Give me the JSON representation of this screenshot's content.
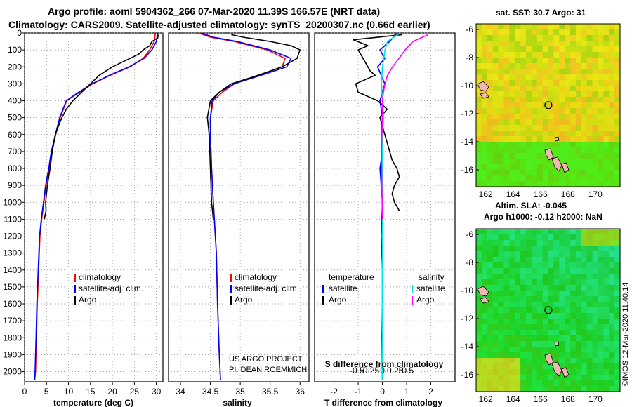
{
  "figure": {
    "title_line1": "Argo profile: aoml 5904362_266 07-Mar-2020 11.39S 166.57E (NRT data)",
    "title_line2": "Climatology: CARS2009. Satellite-adjusted climatology: synTS_20200307.nc (0.66d earlier)",
    "credit_line1": "US ARGO PROJECT",
    "credit_line2": "PI: DEAN ROEMMICH",
    "imos_stamp": "©IMOS 12-Mar-2020 11:40:14"
  },
  "colors": {
    "climatology": "#ff0000",
    "satellite": "#0000ff",
    "argo": "#000000",
    "sal_satellite": "#00e5e5",
    "sal_argo": "#ff00ff",
    "grid": "#888888"
  },
  "chart_data": [
    {
      "type": "line",
      "title": "",
      "xlabel": "temperature (deg C)",
      "ylabel": "",
      "xlim": [
        0,
        31.5
      ],
      "ylim": [
        2060,
        0
      ],
      "xticks": [
        "0",
        "5",
        "10",
        "15",
        "20",
        "25",
        "30"
      ],
      "xtick_values": [
        0,
        5,
        10,
        15,
        20,
        25,
        30
      ],
      "yticks": [
        "0",
        "100",
        "200",
        "300",
        "400",
        "500",
        "600",
        "700",
        "800",
        "900",
        "1000",
        "1100",
        "1200",
        "1300",
        "1400",
        "1500",
        "1600",
        "1700",
        "1800",
        "1900",
        "2000"
      ],
      "ytick_values": [
        0,
        100,
        200,
        300,
        400,
        500,
        600,
        700,
        800,
        900,
        1000,
        1100,
        1200,
        1300,
        1400,
        1500,
        1600,
        1700,
        1800,
        1900,
        2000
      ],
      "legend": [
        "climatology",
        "satellite-adj. clim.",
        "Argo"
      ],
      "series": [
        {
          "name": "climatology",
          "color": "#ff0000",
          "x": [
            29.8,
            29.5,
            28.5,
            27.0,
            24.0,
            19.5,
            15.5,
            12.5,
            9.6,
            8.1,
            7.1,
            6.2,
            5.6,
            4.9,
            4.4,
            3.9,
            3.5,
            3.2,
            2.9,
            2.7,
            2.5,
            2.3
          ],
          "y": [
            0,
            50,
            100,
            150,
            200,
            250,
            300,
            350,
            400,
            500,
            600,
            700,
            800,
            900,
            1000,
            1100,
            1200,
            1400,
            1600,
            1800,
            2000,
            2050
          ]
        },
        {
          "name": "satellite-adj. clim.",
          "color": "#0000ff",
          "x": [
            30.3,
            30.0,
            29.0,
            27.2,
            23.8,
            19.3,
            15.4,
            12.3,
            9.5,
            8.0,
            7.0,
            6.1,
            5.5,
            4.8,
            4.3,
            3.8,
            3.4,
            3.1,
            2.8,
            2.6,
            2.4,
            2.3
          ],
          "y": [
            0,
            50,
            100,
            150,
            200,
            250,
            300,
            350,
            400,
            500,
            600,
            700,
            800,
            900,
            1000,
            1100,
            1200,
            1400,
            1600,
            1800,
            2000,
            2050
          ]
        },
        {
          "name": "Argo",
          "color": "#000000",
          "x": [
            30.5,
            30.3,
            29.0,
            28.5,
            27.0,
            26.0,
            24.0,
            22.0,
            20.0,
            17.0,
            15.0,
            13.0,
            11.0,
            9.5,
            8.5,
            7.7,
            7.0,
            6.3,
            5.8,
            5.2,
            4.8,
            4.9,
            4.5
          ],
          "y": [
            10,
            30,
            50,
            75,
            100,
            125,
            150,
            175,
            200,
            250,
            300,
            350,
            400,
            450,
            500,
            550,
            600,
            700,
            800,
            900,
            1000,
            1050,
            1100
          ]
        }
      ]
    },
    {
      "type": "line",
      "title": "",
      "xlabel": "salinity",
      "ylabel": "",
      "xlim": [
        33.8,
        36.15
      ],
      "ylim": [
        2060,
        0
      ],
      "xticks": [
        "34",
        "34.5",
        "35",
        "35.5",
        "36"
      ],
      "xtick_values": [
        34,
        34.5,
        35,
        35.5,
        36
      ],
      "legend": [
        "climatology",
        "satellite-adj. clim.",
        "Argo"
      ],
      "series": [
        {
          "name": "climatology",
          "color": "#ff0000",
          "x": [
            34.3,
            34.5,
            34.9,
            35.45,
            35.75,
            35.7,
            35.3,
            34.9,
            34.7,
            34.55,
            34.5,
            34.5,
            34.52,
            34.55,
            34.6,
            34.62,
            34.65,
            34.67
          ],
          "y": [
            0,
            25,
            50,
            100,
            150,
            200,
            250,
            300,
            350,
            400,
            500,
            600,
            800,
            1000,
            1300,
            1600,
            1900,
            2050
          ]
        },
        {
          "name": "satellite-adj. clim.",
          "color": "#0000ff",
          "x": [
            34.35,
            34.55,
            34.95,
            35.5,
            35.85,
            35.78,
            35.35,
            34.9,
            34.65,
            34.53,
            34.5,
            34.5,
            34.52,
            34.55,
            34.6,
            34.62,
            34.65,
            34.67
          ],
          "y": [
            0,
            25,
            50,
            100,
            150,
            200,
            250,
            300,
            350,
            400,
            500,
            600,
            800,
            1000,
            1300,
            1600,
            1900,
            2050
          ]
        },
        {
          "name": "Argo",
          "color": "#000000",
          "x": [
            34.85,
            35.05,
            35.5,
            35.85,
            36.0,
            35.95,
            35.7,
            35.3,
            34.85,
            34.65,
            34.5,
            34.45,
            34.48,
            34.5,
            34.52,
            34.55
          ],
          "y": [
            10,
            25,
            50,
            75,
            100,
            150,
            200,
            250,
            300,
            350,
            400,
            500,
            600,
            800,
            1000,
            1100
          ]
        }
      ]
    },
    {
      "type": "line",
      "title": "",
      "xlabel": "T difference from climatology",
      "xlabel_top": "S difference from climatology",
      "ylabel": "",
      "xlim": [
        -2.8,
        3.0
      ],
      "ylim": [
        2060,
        0
      ],
      "xticks": [
        "-2",
        "-1",
        "0",
        "1",
        "2"
      ],
      "xtick_values": [
        -2,
        -1,
        0,
        1,
        2
      ],
      "sal_xticks": [
        "-0.5",
        "-0.25",
        "0",
        "0.25",
        "0.5"
      ],
      "sal_xtick_values": [
        -0.5,
        -0.25,
        0,
        0.25,
        0.5
      ],
      "legend_group_t": "temperature",
      "legend_group_s": "salinity",
      "legend": [
        "satellite",
        "Argo",
        "satellite",
        "Argo"
      ],
      "series": [
        {
          "name": "T satellite",
          "color": "#0000ff",
          "x": [
            0.6,
            0.3,
            -0.1,
            0.1,
            -0.2,
            0.1,
            -0.1,
            0.0,
            -0.05,
            0.0,
            -0.1,
            -0.05,
            0.0,
            -0.05,
            0.0,
            0.0,
            -0.02,
            0.0
          ],
          "y": [
            0,
            50,
            100,
            150,
            200,
            300,
            400,
            500,
            600,
            700,
            800,
            900,
            1000,
            1200,
            1400,
            1600,
            1800,
            2050
          ]
        },
        {
          "name": "T Argo",
          "color": "#000000",
          "x": [
            0.8,
            -1.2,
            -0.6,
            -1.0,
            -0.8,
            -0.6,
            -0.5,
            -0.3,
            -1.1,
            -1.0,
            -0.2,
            0.2,
            -0.1,
            0.1,
            0.3,
            0.4,
            0.6,
            0.7,
            0.5,
            0.4,
            0.5,
            0.7
          ],
          "y": [
            10,
            40,
            75,
            100,
            150,
            200,
            225,
            250,
            300,
            350,
            400,
            450,
            500,
            600,
            700,
            750,
            800,
            850,
            900,
            950,
            1000,
            1050
          ]
        },
        {
          "name": "S satellite",
          "color": "#00e5e5",
          "x": [
            0.35,
            0.1,
            0.05,
            0.03,
            0.0,
            -0.02,
            0.0,
            0.02,
            0.0,
            0.0,
            0.0,
            0.0,
            0.0,
            0.0,
            0.0
          ],
          "y": [
            0,
            50,
            100,
            150,
            200,
            300,
            400,
            500,
            600,
            800,
            1000,
            1200,
            1500,
            1800,
            2050
          ]
        },
        {
          "name": "S Argo",
          "color": "#ff00ff",
          "x": [
            0.9,
            0.6,
            0.45,
            0.2,
            0.1,
            0.05,
            0.02,
            0.0,
            0.0,
            -0.02,
            -0.01,
            0.0
          ],
          "y": [
            10,
            50,
            100,
            200,
            250,
            300,
            350,
            400,
            500,
            700,
            900,
            1100
          ]
        }
      ]
    },
    {
      "type": "heatmap",
      "title": "sat. SST: 30.7 Argo: 31",
      "xticks": [
        "162",
        "164",
        "166",
        "168",
        "170"
      ],
      "xtick_values": [
        162,
        164,
        166,
        168,
        170
      ],
      "yticks": [
        "-6",
        "-8",
        "-10",
        "-12",
        "-14",
        "-16"
      ],
      "ytick_values": [
        -6,
        -8,
        -10,
        -12,
        -14,
        -16
      ],
      "xlim": [
        161.3,
        171.8
      ],
      "ylim": [
        -17.2,
        -5.6
      ],
      "float_position": {
        "lon": 166.57,
        "lat": -11.39
      }
    },
    {
      "type": "heatmap",
      "title_line1": "Altim. SLA: -0.045",
      "title_line2": "Argo h1000: -0.12 h2000: NaN",
      "xticks": [
        "162",
        "164",
        "166",
        "168",
        "170"
      ],
      "xtick_values": [
        162,
        164,
        166,
        168,
        170
      ],
      "yticks": [
        "-6",
        "-8",
        "-10",
        "-12",
        "-14",
        "-16"
      ],
      "ytick_values": [
        -6,
        -8,
        -10,
        -12,
        -14,
        -16
      ],
      "xlim": [
        161.3,
        171.8
      ],
      "ylim": [
        -17.2,
        -5.6
      ],
      "float_position": {
        "lon": 166.57,
        "lat": -11.39
      }
    }
  ]
}
